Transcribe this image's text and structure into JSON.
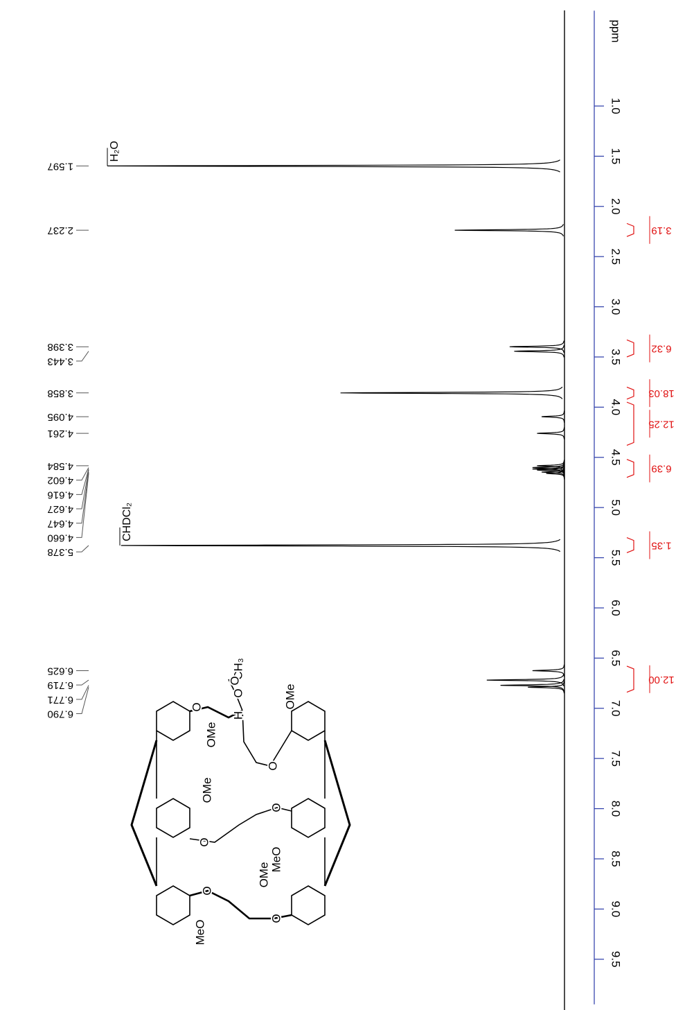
{
  "chart_data": {
    "type": "nmr",
    "x_label": "ppm",
    "xlim": [
      0.05,
      9.95
    ],
    "xticks": [
      {
        "value": 1,
        "label": "1.0"
      },
      1.5,
      {
        "value": 2,
        "label": "2.0"
      },
      2.5,
      {
        "value": 3,
        "label": "3.0"
      },
      3.5,
      {
        "value": 4,
        "label": "4.0"
      },
      4.5,
      {
        "value": 5,
        "label": "5.0"
      },
      5.5,
      {
        "value": 6,
        "label": "6.0"
      },
      6.5,
      {
        "value": 7,
        "label": "7.0"
      },
      7.5,
      {
        "value": 8,
        "label": "8.0"
      },
      8.5,
      {
        "value": 9,
        "label": "9.0"
      },
      9.5
    ],
    "color": "#000000",
    "axis_color": "#2a3aa8",
    "peaks": {
      "x": [
        1.597,
        2.237,
        3.398,
        3.443,
        3.858,
        4.095,
        4.261,
        4.584,
        4.602,
        4.616,
        4.627,
        4.647,
        4.66,
        5.378,
        6.625,
        6.719,
        6.771,
        6.79
      ],
      "x_labels": [
        "1.597",
        "2.237",
        "3.398",
        "3.443",
        "3.858",
        "4.095",
        "4.261",
        "4.584",
        "4.602",
        "4.616",
        "4.627",
        "4.647",
        "4.660",
        "5.378",
        "6.625",
        "6.719",
        "6.771",
        "6.790"
      ],
      "values": [
        100,
        24,
        12,
        11,
        49,
        5,
        6,
        6,
        7,
        7,
        6,
        5,
        4,
        97,
        7,
        17,
        14,
        8
      ]
    },
    "integrals": {
      "color": "#e01010",
      "ranges": [
        [
          2.17,
          2.3
        ],
        [
          3.33,
          3.5
        ],
        [
          3.8,
          3.92
        ],
        [
          3.95,
          4.38
        ],
        [
          4.52,
          4.7
        ],
        [
          5.3,
          5.45
        ],
        [
          6.58,
          6.84
        ]
      ],
      "values": [
        3.19,
        6.32,
        18.03,
        12.25,
        6.39,
        1.35,
        12
      ],
      "value_labels": [
        "3.19",
        "6.32",
        "18.03",
        "12.25",
        "6.39",
        "1.35",
        "12.00"
      ]
    },
    "annotations": [
      "H₂O",
      "CHDCl₂"
    ],
    "structure": {
      "labels": [
        "O",
        "OMe",
        "OMe",
        "O",
        "MeO",
        "O",
        "H",
        "O",
        "CH₃",
        "O",
        "OMe",
        "O",
        "O",
        "MeO",
        "O",
        "OMe",
        "O"
      ]
    }
  }
}
